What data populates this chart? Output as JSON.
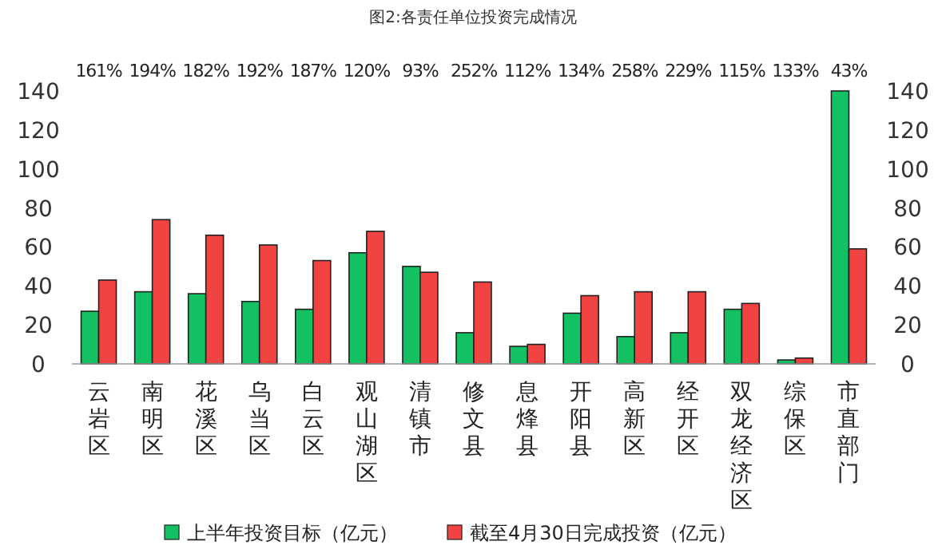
{
  "chart_data": {
    "type": "bar",
    "title": "图2:各责任单位投资完成情况",
    "categories": [
      "云岩区",
      "南明区",
      "花溪区",
      "乌当区",
      "白云区",
      "观山湖区",
      "清镇市",
      "修文县",
      "息烽县",
      "开阳县",
      "高新区",
      "经开区",
      "双龙经济区",
      "综保区",
      "市直部门"
    ],
    "series": [
      {
        "name": "上半年投资目标（亿元）",
        "color": "#13c062",
        "values": [
          27,
          37,
          36,
          32,
          28,
          57,
          50,
          16,
          9,
          26,
          14,
          16,
          28,
          2,
          140
        ]
      },
      {
        "name": "截至4月30日完成投资（亿元）",
        "color": "#f24343",
        "values": [
          43,
          74,
          66,
          61,
          53,
          68,
          47,
          42,
          10,
          35,
          37,
          37,
          31,
          3,
          59
        ]
      }
    ],
    "ylim": [
      0,
      140
    ],
    "yticks": [
      0,
      20,
      40,
      60,
      80,
      100,
      120,
      140
    ],
    "y2lim": [
      0,
      140
    ],
    "y2ticks": [
      0,
      20,
      40,
      60,
      80,
      100,
      120,
      140
    ],
    "grid": false,
    "legend": "bottom",
    "annotations": [
      "161%",
      "194%",
      "182%",
      "192%",
      "187%",
      "120%",
      "93%",
      "252%",
      "112%",
      "134%",
      "258%",
      "229%",
      "115%",
      "133%",
      "43%"
    ]
  }
}
